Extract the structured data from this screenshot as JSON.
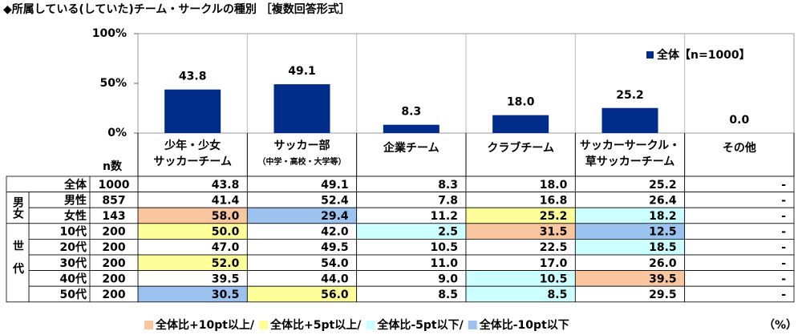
{
  "chart_data": {
    "type": "bar",
    "title": "◆所属している(していた)チーム・サークルの種別 ［複数回答形式］",
    "categories": [
      [
        "少年・少女",
        "サッカーチーム"
      ],
      [
        "サッカー部",
        "（中学・高校・大学等）"
      ],
      [
        "企業チーム"
      ],
      [
        "クラブチーム"
      ],
      [
        "サッカーサークル・",
        "草サッカーチーム"
      ],
      [
        "その他"
      ]
    ],
    "series": [
      {
        "name": "全体【n=1000】",
        "color": "#002c8a",
        "values": [
          43.8,
          49.1,
          8.3,
          18.0,
          25.2,
          0.0
        ],
        "value_labels": [
          "43.8",
          "49.1",
          "8.3",
          "18.0",
          "25.2",
          "0.0"
        ]
      }
    ],
    "ylim": [
      0,
      100
    ],
    "yticks": [
      {
        "value": 0,
        "label": "0%"
      },
      {
        "value": 50,
        "label": "50%"
      },
      {
        "value": 100,
        "label": "100%"
      }
    ],
    "legend": "top-right"
  },
  "table": {
    "n_header": "n数",
    "sections": [
      {
        "rows": [
          {
            "label": "全体",
            "n": "1000",
            "cells": [
              "43.8",
              "49.1",
              "8.3",
              "18.0",
              "25.2",
              "-"
            ],
            "fills": [
              null,
              null,
              null,
              null,
              null,
              null
            ]
          }
        ]
      },
      {
        "group": "男女",
        "rows": [
          {
            "label": "男性",
            "n": "857",
            "cells": [
              "41.4",
              "52.4",
              "7.8",
              "16.8",
              "26.4",
              "-"
            ],
            "fills": [
              null,
              null,
              null,
              null,
              null,
              null
            ]
          },
          {
            "label": "女性",
            "n": "143",
            "cells": [
              "58.0",
              "29.4",
              "11.2",
              "25.2",
              "18.2",
              "-"
            ],
            "fills": [
              "#f9c6a0",
              "#9cc3f0",
              null,
              "#ffff99",
              "#ccffff",
              null
            ]
          }
        ]
      },
      {
        "group": "世代",
        "rows": [
          {
            "label": "10代",
            "n": "200",
            "cells": [
              "50.0",
              "42.0",
              "2.5",
              "31.5",
              "12.5",
              "-"
            ],
            "fills": [
              "#ffff99",
              null,
              "#ccffff",
              "#f9c6a0",
              "#9cc3f0",
              null
            ]
          },
          {
            "label": "20代",
            "n": "200",
            "cells": [
              "47.0",
              "49.5",
              "10.5",
              "22.5",
              "18.5",
              "-"
            ],
            "fills": [
              null,
              null,
              null,
              null,
              "#ccffff",
              null
            ]
          },
          {
            "label": "30代",
            "n": "200",
            "cells": [
              "52.0",
              "54.0",
              "11.0",
              "17.0",
              "26.0",
              "-"
            ],
            "fills": [
              "#ffff99",
              null,
              null,
              null,
              null,
              null
            ]
          },
          {
            "label": "40代",
            "n": "200",
            "cells": [
              "39.5",
              "44.0",
              "9.0",
              "10.5",
              "39.5",
              "-"
            ],
            "fills": [
              null,
              null,
              null,
              "#ccffff",
              "#f9c6a0",
              null
            ]
          },
          {
            "label": "50代",
            "n": "200",
            "cells": [
              "30.5",
              "56.0",
              "8.5",
              "8.5",
              "29.5",
              "-"
            ],
            "fills": [
              "#9cc3f0",
              "#ffff99",
              null,
              "#ccffff",
              null,
              null
            ]
          }
        ]
      }
    ],
    "legend": [
      {
        "label": "全体比+10pt以上/",
        "color": "#f9c6a0"
      },
      {
        "label": "全体比+5pt以上/",
        "color": "#ffff99"
      },
      {
        "label": "全体比-5pt以下/",
        "color": "#ccffff"
      },
      {
        "label": "全体比-10pt以下",
        "color": "#9cc3f0"
      }
    ],
    "unit": "（%）"
  }
}
